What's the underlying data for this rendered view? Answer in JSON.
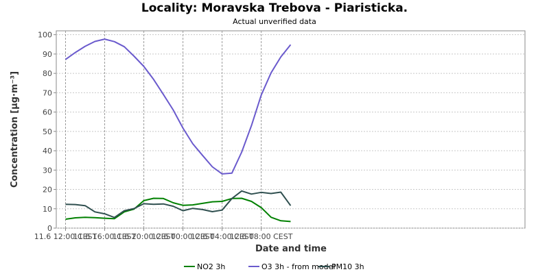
{
  "chart_data": {
    "type": "line",
    "title": "Locality: Moravska Trebova - Piaristicka.",
    "subtitle": "Actual unverified data",
    "xlabel": "Date and time",
    "ylabel": "Concentration [µg·m⁻³]",
    "ylim": [
      0,
      102
    ],
    "yticks": [
      0,
      10,
      20,
      30,
      40,
      50,
      60,
      70,
      80,
      90,
      100
    ],
    "grid": true,
    "legend_position": "bottom",
    "x_hours": [
      0,
      2,
      4,
      6,
      8,
      10,
      12,
      14,
      16,
      18,
      20,
      22,
      24,
      26,
      28,
      30,
      32,
      34,
      36,
      38,
      40,
      42,
      44,
      46
    ],
    "xticks": [
      {
        "hour": 0,
        "label": "11.6 12:00 CEST"
      },
      {
        "hour": 8,
        "label": "11.6 16:00 CEST"
      },
      {
        "hour": 16,
        "label": "11.6 20:00 CEST"
      },
      {
        "hour": 24,
        "label": "12.6 00:00 CEST"
      },
      {
        "hour": 32,
        "label": "12.6 04:00 CEST"
      },
      {
        "hour": 40,
        "label": "12.6 08:00 CEST"
      }
    ],
    "series": [
      {
        "name": "NO2 3h",
        "color": "#008000",
        "values": [
          4.6,
          5.3,
          5.6,
          5.4,
          5.1,
          4.9,
          8.4,
          9.8,
          14.2,
          15.4,
          15.3,
          13.1,
          11.8,
          12.0,
          12.8,
          13.6,
          13.8,
          15.3,
          15.4,
          13.8,
          10.6,
          5.6,
          3.8,
          3.4
        ]
      },
      {
        "name": "O3 3h - from model",
        "color": "#6a5acd",
        "values": [
          87.2,
          90.8,
          94.0,
          96.5,
          97.7,
          96.4,
          93.8,
          88.9,
          83.6,
          76.9,
          69.1,
          61.1,
          51.7,
          43.6,
          37.6,
          31.7,
          28.0,
          28.4,
          39.3,
          53.0,
          68.8,
          80.3,
          88.5,
          94.8
        ]
      },
      {
        "name": "PM10 3h",
        "color": "#2f4f4f",
        "values": [
          12.3,
          12.2,
          11.6,
          8.4,
          7.4,
          5.5,
          9.0,
          10.1,
          12.6,
          12.3,
          12.5,
          11.3,
          9.0,
          10.2,
          9.6,
          8.5,
          9.3,
          15.3,
          19.2,
          17.6,
          18.5,
          17.9,
          18.6,
          11.6
        ]
      }
    ]
  }
}
